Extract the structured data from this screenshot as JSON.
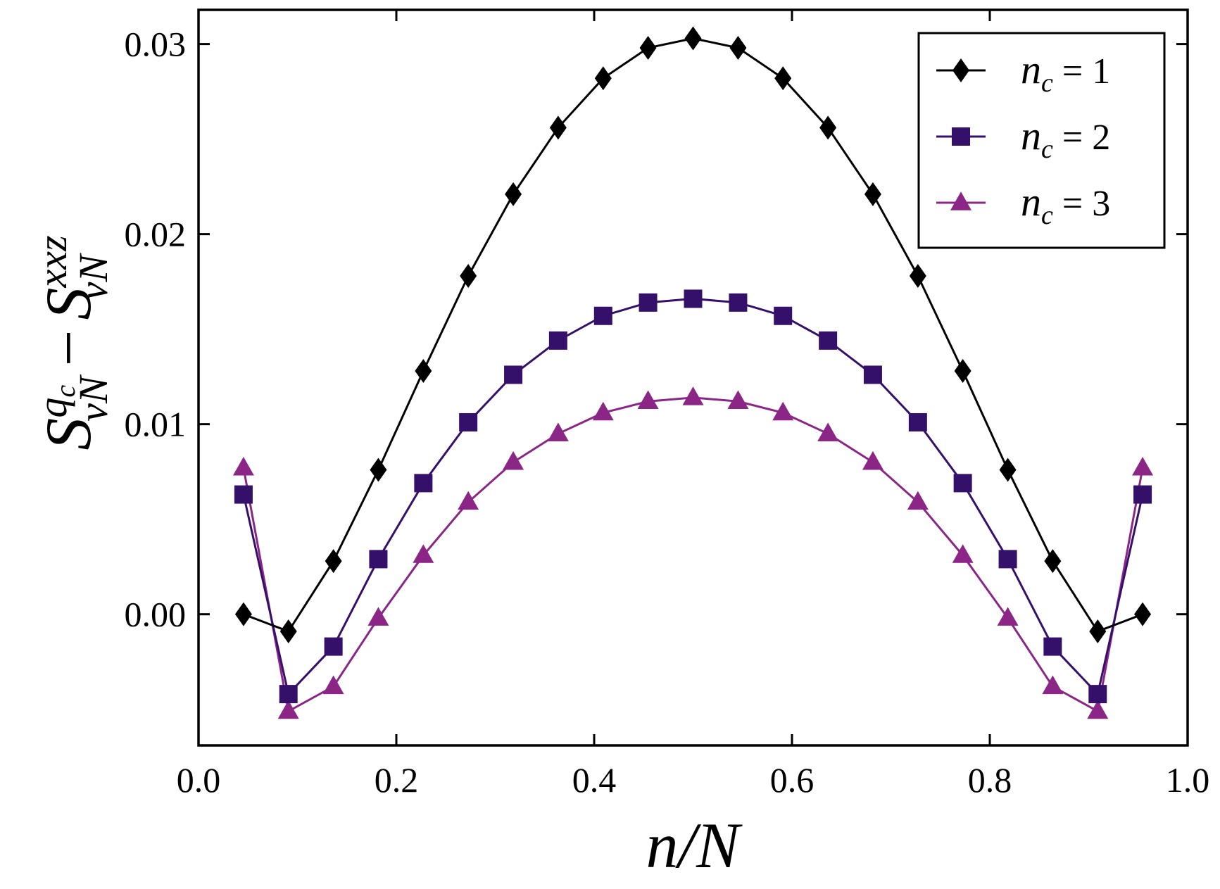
{
  "chart_data": {
    "type": "line",
    "title": "",
    "xlabel": "n/N",
    "ylabel": {
      "part1_base": "S",
      "part1_sup": "q",
      "part1_sup_sub": "c",
      "part1_sub": "vN",
      "minus": "−",
      "part2_base": "S",
      "part2_sup": "xxz",
      "part2_sub": "vN"
    },
    "xlim": [
      0.0,
      1.0
    ],
    "ylim": [
      -0.0069,
      0.0318
    ],
    "xticks": [
      0.0,
      0.2,
      0.4,
      0.6,
      0.8,
      1.0
    ],
    "xtick_labels": [
      "0.0",
      "0.2",
      "0.4",
      "0.6",
      "0.8",
      "1.0"
    ],
    "yticks": [
      0.0,
      0.01,
      0.02,
      0.03
    ],
    "ytick_labels": [
      "0.00",
      "0.01",
      "0.02",
      "0.03"
    ],
    "legend_position": "top-right",
    "x": [
      0.0455,
      0.0909,
      0.1364,
      0.1818,
      0.2273,
      0.2727,
      0.3182,
      0.3636,
      0.4091,
      0.4545,
      0.5,
      0.5455,
      0.5909,
      0.6364,
      0.6818,
      0.7273,
      0.7727,
      0.8182,
      0.8636,
      0.9091,
      0.9545
    ],
    "series": [
      {
        "name": "n_c = 1",
        "legend_var": "n",
        "legend_sub": "c",
        "legend_rest": " = 1",
        "color": "#000000",
        "marker": "diamond",
        "values": [
          0.0,
          -0.0009,
          0.0028,
          0.0076,
          0.0128,
          0.0178,
          0.0221,
          0.0256,
          0.0282,
          0.0298,
          0.0303,
          0.0298,
          0.0282,
          0.0256,
          0.0221,
          0.0178,
          0.0128,
          0.0076,
          0.0028,
          -0.0009,
          0.0
        ]
      },
      {
        "name": "n_c = 2",
        "legend_var": "n",
        "legend_sub": "c",
        "legend_rest": " = 2",
        "color": "#35106b",
        "marker": "square",
        "values": [
          0.0063,
          -0.0042,
          -0.0017,
          0.0029,
          0.0069,
          0.0101,
          0.0126,
          0.0144,
          0.0157,
          0.0164,
          0.0166,
          0.0164,
          0.0157,
          0.0144,
          0.0126,
          0.0101,
          0.0069,
          0.0029,
          -0.0017,
          -0.0042,
          0.0063
        ]
      },
      {
        "name": "n_c = 3",
        "legend_var": "n",
        "legend_sub": "c",
        "legend_rest": " = 3",
        "color": "#8b2586",
        "marker": "triangle",
        "values": [
          0.0077,
          -0.0051,
          -0.0038,
          -0.0002,
          0.0031,
          0.0059,
          0.008,
          0.0095,
          0.0106,
          0.0112,
          0.0114,
          0.0112,
          0.0106,
          0.0095,
          0.008,
          0.0059,
          0.0031,
          -0.0002,
          -0.0038,
          -0.0051,
          0.0077
        ]
      }
    ]
  }
}
